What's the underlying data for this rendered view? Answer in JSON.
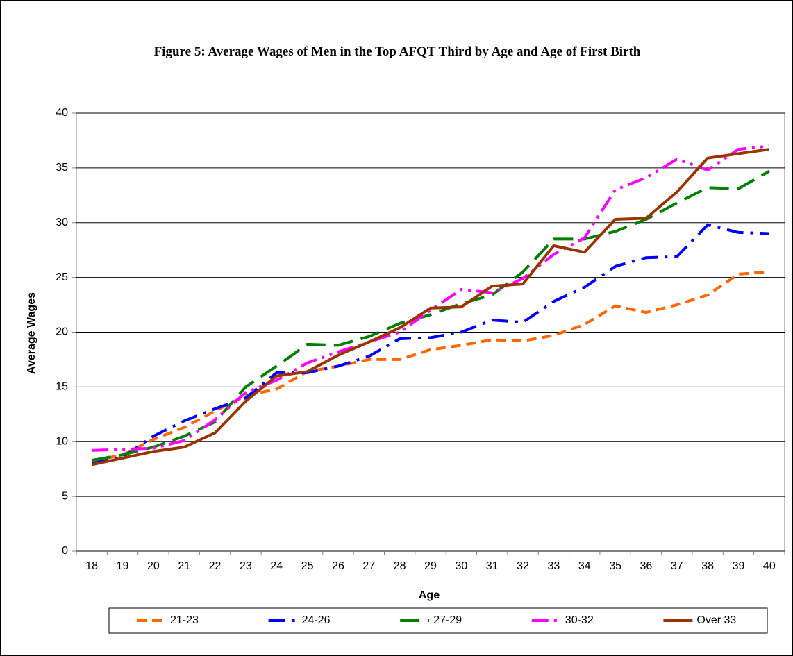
{
  "chart_data": {
    "type": "line",
    "title": "Figure 5: Average Wages of Men in the Top AFQT Third by Age and Age of First Birth",
    "x_label": "Age",
    "y_label": "Average Wages",
    "categories": [
      18,
      19,
      20,
      21,
      22,
      23,
      24,
      25,
      26,
      27,
      28,
      29,
      30,
      31,
      32,
      33,
      34,
      35,
      36,
      37,
      38,
      39,
      40
    ],
    "ylim": [
      0,
      40
    ],
    "yticks": [
      0,
      5,
      10,
      15,
      20,
      25,
      30,
      35,
      40
    ],
    "grid": true,
    "legend": "bottom",
    "series": [
      {
        "name": "21-23",
        "color": "#ff6600",
        "linestyle": "dashed",
        "values": [
          8.2,
          8.8,
          10.2,
          11.3,
          12.8,
          14.2,
          14.8,
          16.4,
          16.9,
          17.5,
          17.5,
          18.4,
          18.8,
          19.3,
          19.2,
          19.7,
          20.7,
          22.4,
          21.8,
          22.5,
          23.4,
          25.3,
          25.5
        ]
      },
      {
        "name": "24-26",
        "color": "#0000ff",
        "linestyle": "dashdot",
        "values": [
          8.0,
          8.6,
          10.5,
          11.9,
          13.0,
          14.0,
          16.3,
          16.3,
          16.9,
          17.8,
          19.4,
          19.5,
          20.0,
          21.1,
          20.9,
          22.8,
          24.1,
          26.0,
          26.8,
          26.9,
          29.8,
          29.1,
          29.0
        ]
      },
      {
        "name": "27-29",
        "color": "#008000",
        "linestyle": "longdash",
        "values": [
          8.3,
          8.8,
          9.5,
          10.5,
          11.8,
          15.0,
          16.9,
          18.9,
          18.8,
          19.6,
          20.8,
          21.6,
          22.6,
          23.4,
          25.5,
          28.5,
          28.5,
          29.2,
          30.3,
          31.8,
          33.2,
          33.1,
          34.7
        ]
      },
      {
        "name": "30-32",
        "color": "#ff00ff",
        "linestyle": "dashdotdot",
        "values": [
          9.2,
          9.3,
          9.4,
          10.1,
          12.0,
          14.5,
          15.6,
          17.2,
          18.2,
          19.1,
          20.0,
          22.0,
          23.9,
          23.6,
          24.9,
          27.1,
          28.6,
          33.0,
          34.1,
          35.8,
          34.8,
          36.7,
          37.0
        ]
      },
      {
        "name": "Over 33",
        "color": "#993300",
        "linestyle": "solid",
        "values": [
          7.9,
          8.5,
          9.1,
          9.5,
          10.8,
          13.7,
          16.0,
          16.4,
          17.9,
          19.1,
          20.4,
          22.2,
          22.3,
          24.2,
          24.4,
          27.9,
          27.3,
          30.3,
          30.4,
          32.8,
          35.9,
          36.3,
          36.7
        ]
      }
    ]
  }
}
